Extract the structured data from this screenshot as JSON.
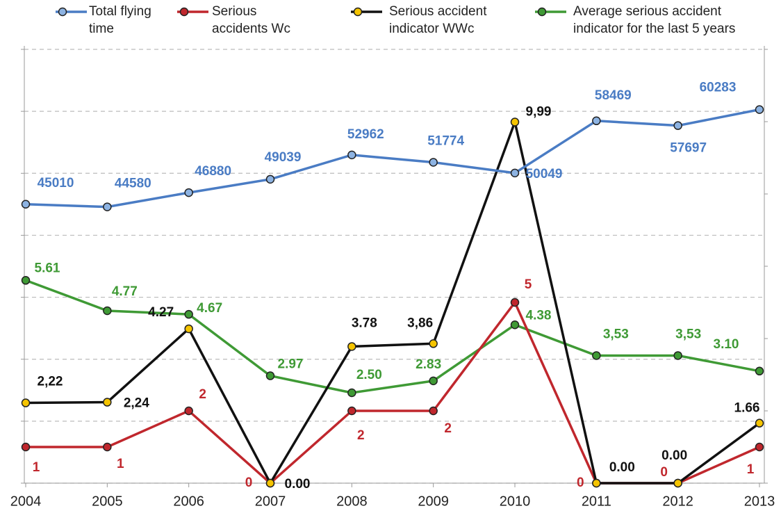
{
  "chart_data": {
    "type": "line",
    "categories": [
      "2004",
      "2005",
      "2006",
      "2007",
      "2008",
      "2009",
      "2010",
      "2011",
      "2012",
      "2013"
    ],
    "series": [
      {
        "name": "Total flying time",
        "color": "#4a7cc4",
        "marker": "#8db3e2",
        "axis": "y2",
        "values": [
          45010,
          44580,
          46880,
          49039,
          52962,
          51774,
          50049,
          58469,
          57697,
          60283
        ]
      },
      {
        "name": "Serious accidents Wc",
        "color": "#c0272d",
        "marker": "#c0272d",
        "values": [
          1,
          1,
          2,
          0,
          2,
          2,
          5,
          0,
          0,
          1
        ]
      },
      {
        "name": "Serious accident indicator WWc",
        "color": "#111111",
        "marker": "#f5c400",
        "values": [
          2.22,
          2.24,
          4.27,
          0,
          3.78,
          3.86,
          9.99,
          0,
          0,
          1.66
        ],
        "value_labels": [
          "2,22",
          "2,24",
          "4.27",
          "0.00",
          "3.78",
          "3,86",
          "9,99",
          "0.00",
          "0.00",
          "1.66"
        ]
      },
      {
        "name": "Average serious accident indicator for the last 5 years",
        "color": "#3f9a35",
        "marker": "#3f9a35",
        "values": [
          5.61,
          4.77,
          4.67,
          2.97,
          2.5,
          2.83,
          4.38,
          3.53,
          3.53,
          3.1
        ],
        "value_labels": [
          "5.61",
          "4.77",
          "4.67",
          "2.97",
          "2.50",
          "2.83",
          "4.38",
          "3,53",
          "3,53",
          "3.10"
        ]
      }
    ],
    "ylim": [
      0,
      12
    ],
    "yticks": [
      0,
      2,
      4,
      6,
      8,
      10,
      12
    ],
    "y2lim": [
      0,
      70000
    ],
    "y2ticks": [
      0,
      10000,
      20000,
      30000,
      40000,
      50000,
      60000,
      70000
    ],
    "grid": true,
    "legend": "top"
  }
}
